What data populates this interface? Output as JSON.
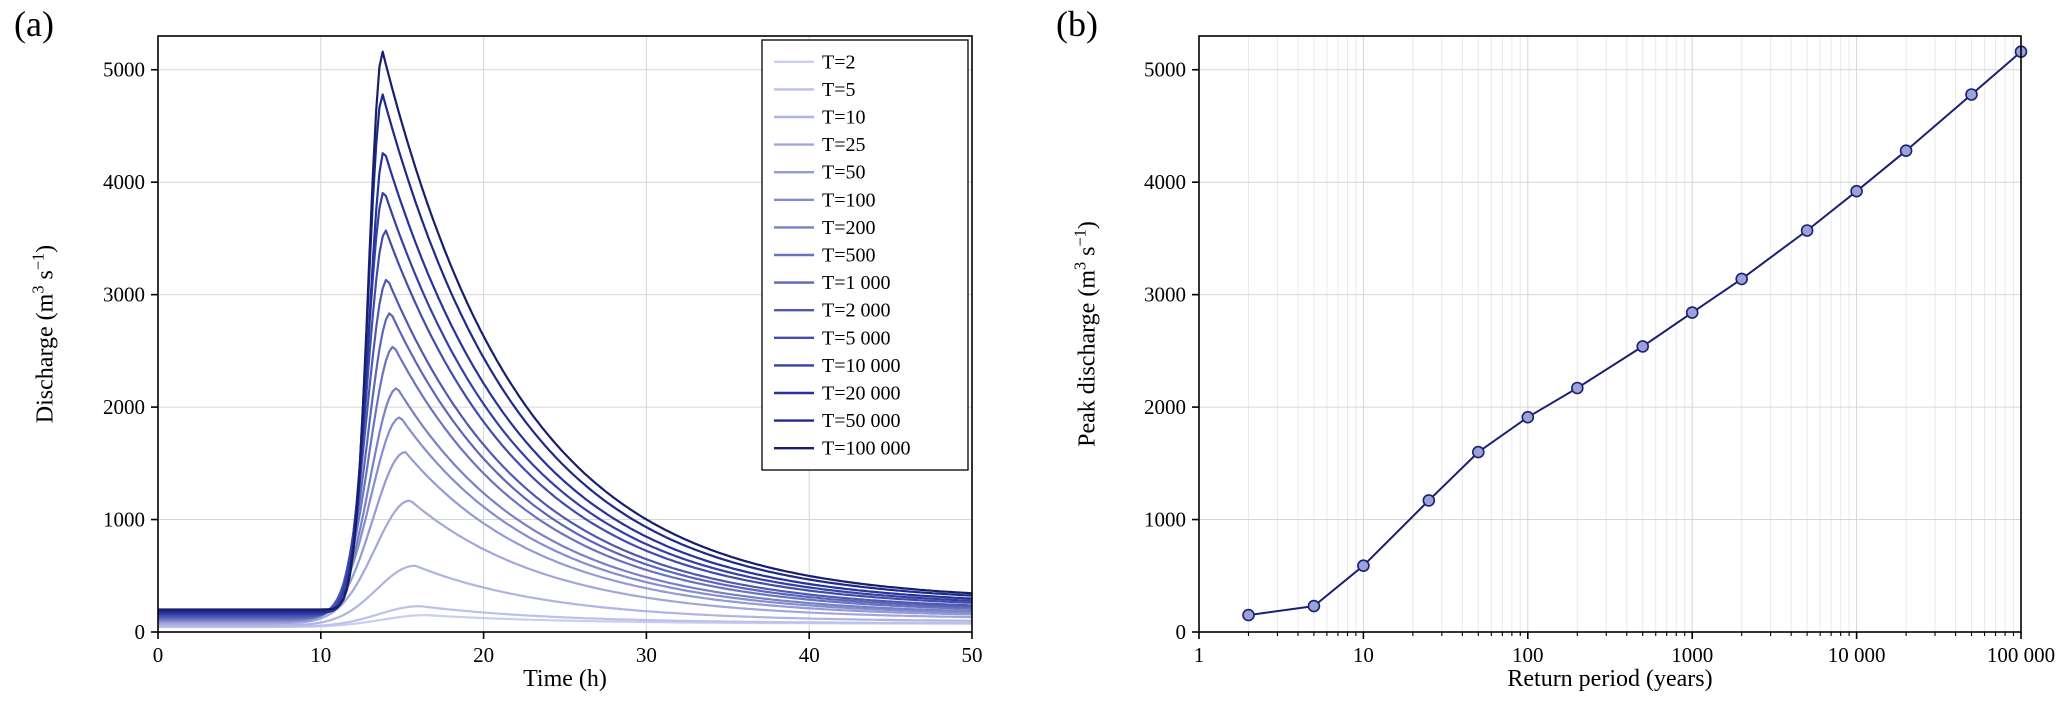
{
  "figure": {
    "background": "#ffffff"
  },
  "panels": [
    {
      "tag": "(a)"
    },
    {
      "tag": "(b)"
    }
  ],
  "styles": {
    "axis_color": "#000000",
    "grid_color": "#d6d6d6",
    "minor_grid_color": "#e9e9e9",
    "text_color": "#000000",
    "line_color": "#1b2172",
    "marker_fill": "#9ba2d8",
    "legend_bg": "#ffffff",
    "legend_border": "#000000"
  },
  "chart_data": [
    {
      "type": "line",
      "panel": "a",
      "title": "",
      "xlabel": "Time (h)",
      "ylabel": "Discharge (m³ s⁻¹)",
      "ylabel_parts": {
        "pre": "Discharge (m",
        "sup1": "3",
        "mid": " s",
        "sup2": "−1",
        "post": ")"
      },
      "xlim": [
        0,
        50
      ],
      "ylim": [
        0,
        5300
      ],
      "xticks": [
        0,
        10,
        20,
        30,
        40,
        50
      ],
      "yticks": [
        0,
        1000,
        2000,
        3000,
        4000,
        5000
      ],
      "grid": true,
      "legend_position": "upper right",
      "series": [
        {
          "name": "T=2",
          "peak": 150,
          "peak_time": 16.5,
          "color": "#c9cdf1"
        },
        {
          "name": "T=5",
          "peak": 230,
          "peak_time": 16.1,
          "color": "#bcc1ea"
        },
        {
          "name": "T=10",
          "peak": 590,
          "peak_time": 15.8,
          "color": "#aeb4e3"
        },
        {
          "name": "T=25",
          "peak": 1170,
          "peak_time": 15.5,
          "color": "#a1a7dc"
        },
        {
          "name": "T=50",
          "peak": 1600,
          "peak_time": 15.2,
          "color": "#939ad5"
        },
        {
          "name": "T=100",
          "peak": 1910,
          "peak_time": 14.9,
          "color": "#868dce"
        },
        {
          "name": "T=200",
          "peak": 2170,
          "peak_time": 14.7,
          "color": "#7880c7"
        },
        {
          "name": "T=500",
          "peak": 2540,
          "peak_time": 14.5,
          "color": "#6a73c0"
        },
        {
          "name": "T=1 000",
          "peak": 2840,
          "peak_time": 14.3,
          "color": "#5c66b9"
        },
        {
          "name": "T=2 000",
          "peak": 3140,
          "peak_time": 14.1,
          "color": "#4f59b2"
        },
        {
          "name": "T=5 000",
          "peak": 3570,
          "peak_time": 14.0,
          "color": "#414cab"
        },
        {
          "name": "T=10 000",
          "peak": 3920,
          "peak_time": 13.9,
          "color": "#3440a4"
        },
        {
          "name": "T=20 000",
          "peak": 4280,
          "peak_time": 13.9,
          "color": "#27339d"
        },
        {
          "name": "T=50 000",
          "peak": 4780,
          "peak_time": 13.8,
          "color": "#1e2a8a"
        },
        {
          "name": "T=100 000",
          "peak": 5160,
          "peak_time": 13.8,
          "color": "#171f6d"
        }
      ]
    },
    {
      "type": "line",
      "panel": "b",
      "title": "",
      "xlabel": "Return period (years)",
      "ylabel": "Peak discharge (m³ s⁻¹)",
      "ylabel_parts": {
        "pre": "Peak discharge (m",
        "sup1": "3",
        "mid": " s",
        "sup2": "−1",
        "post": ")"
      },
      "xscale": "log",
      "xlim": [
        1,
        100000
      ],
      "ylim": [
        0,
        5300
      ],
      "xticks": [
        1,
        10,
        100,
        1000,
        10000,
        100000
      ],
      "xtick_labels": [
        "1",
        "10",
        "100",
        "1000",
        "10 000",
        "100 000"
      ],
      "yticks": [
        0,
        1000,
        2000,
        3000,
        4000,
        5000
      ],
      "grid": true,
      "marker": "circle",
      "x": [
        2,
        5,
        10,
        25,
        50,
        100,
        200,
        500,
        1000,
        2000,
        5000,
        10000,
        20000,
        50000,
        100000
      ],
      "y": [
        150,
        230,
        590,
        1170,
        1600,
        1910,
        2170,
        2540,
        2840,
        3140,
        3570,
        3920,
        4280,
        4780,
        5160
      ]
    }
  ]
}
